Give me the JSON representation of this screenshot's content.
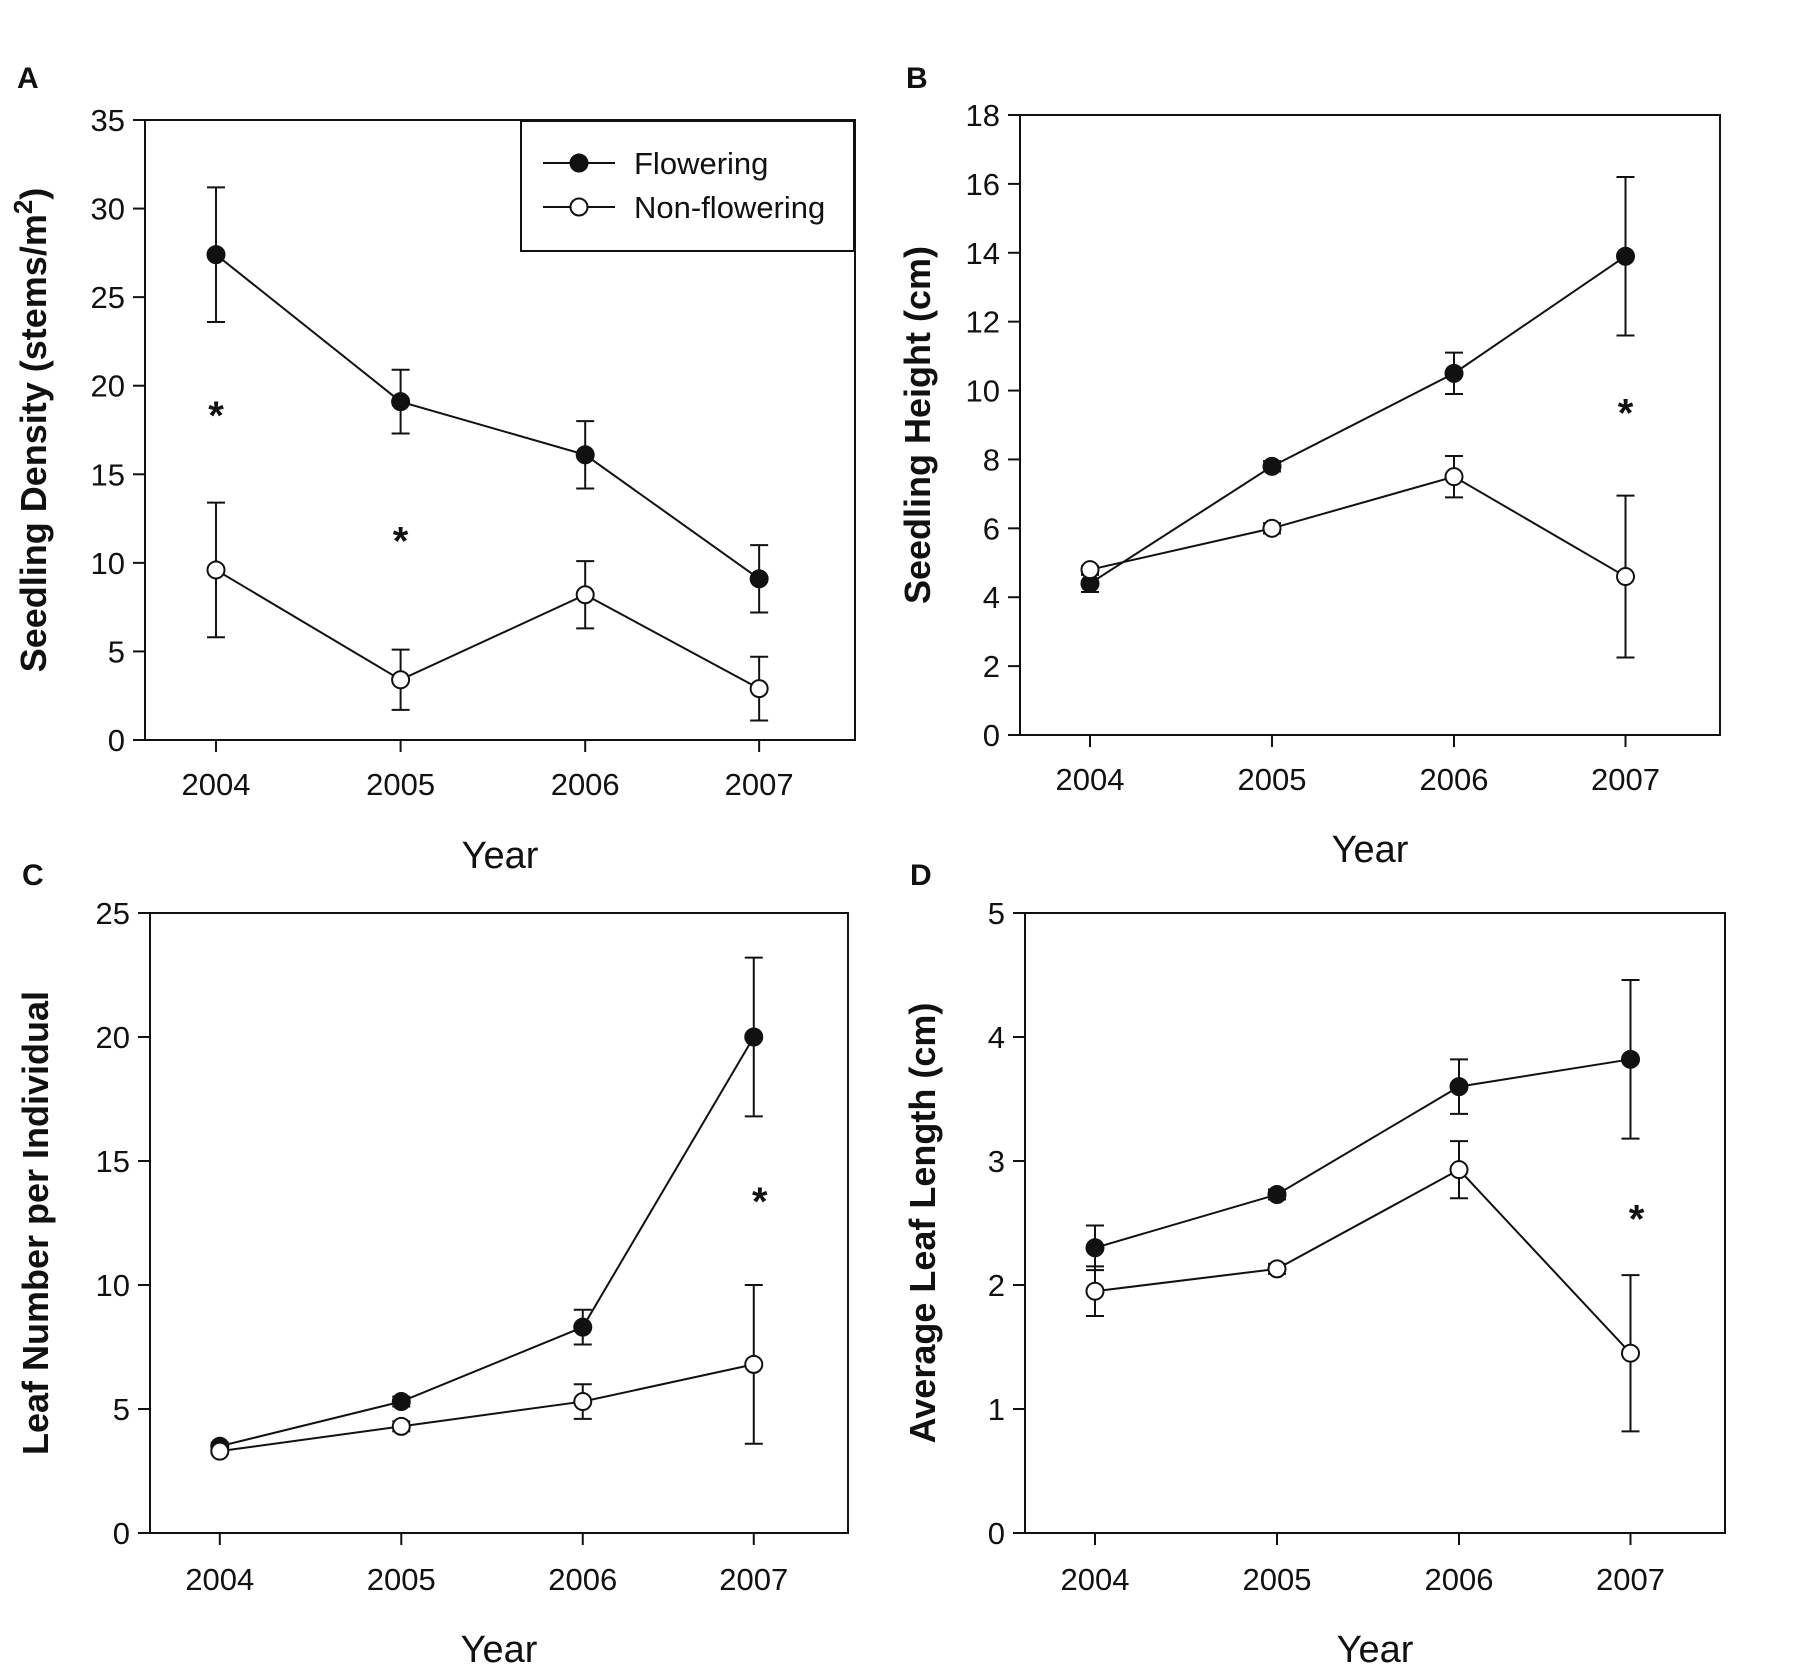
{
  "legend": {
    "flowering_label": "Flowering",
    "nonflowering_label": "Non-flowering"
  },
  "chart_data": [
    {
      "type": "line",
      "panel": "A",
      "title": "",
      "xlabel": "Year",
      "ylabel": "Seedling Density (stems/m2)",
      "ylabel_main": "Seedling Density (stems/m",
      "ylabel_sup": "2",
      "ylabel_end": ")",
      "categories": [
        "2004",
        "2005",
        "2006",
        "2007"
      ],
      "ylim": [
        0,
        35
      ],
      "yticks": [
        0,
        5,
        10,
        15,
        20,
        25,
        30,
        35
      ],
      "legend": "top-right",
      "series": [
        {
          "name": "Flowering",
          "values": [
            27.4,
            19.1,
            16.1,
            9.1
          ],
          "errors": [
            3.8,
            1.8,
            1.9,
            1.9
          ]
        },
        {
          "name": "Non-flowering",
          "values": [
            9.6,
            3.4,
            8.2,
            2.9
          ],
          "errors": [
            3.8,
            1.7,
            1.9,
            1.8
          ]
        }
      ],
      "annotations": [
        {
          "text": "*",
          "x": "2004",
          "y": 18.8
        },
        {
          "text": "*",
          "x": "2005",
          "y": 11.7
        }
      ]
    },
    {
      "type": "line",
      "panel": "B",
      "title": "",
      "xlabel": "Year",
      "ylabel": "Seedling Height (cm)",
      "categories": [
        "2004",
        "2005",
        "2006",
        "2007"
      ],
      "ylim": [
        0,
        18
      ],
      "yticks": [
        0,
        2,
        4,
        6,
        8,
        10,
        12,
        14,
        16,
        18
      ],
      "series": [
        {
          "name": "Flowering",
          "values": [
            4.4,
            7.8,
            10.5,
            13.9
          ],
          "errors": [
            0.25,
            0.15,
            0.6,
            2.3
          ]
        },
        {
          "name": "Non-flowering",
          "values": [
            4.8,
            6.0,
            7.5,
            4.6
          ],
          "errors": [
            0.1,
            0.15,
            0.6,
            2.35
          ]
        }
      ],
      "annotations": [
        {
          "text": "*",
          "x": "2007",
          "y": 9.6
        }
      ]
    },
    {
      "type": "line",
      "panel": "C",
      "title": "",
      "xlabel": "Year",
      "ylabel": "Leaf Number per Individual",
      "categories": [
        "2004",
        "2005",
        "2006",
        "2007"
      ],
      "ylim": [
        0,
        25
      ],
      "yticks": [
        0,
        5,
        10,
        15,
        20,
        25
      ],
      "series": [
        {
          "name": "Flowering",
          "values": [
            3.5,
            5.3,
            8.3,
            20.0
          ],
          "errors": [
            0.15,
            0.2,
            0.7,
            3.2
          ]
        },
        {
          "name": "Non-flowering",
          "values": [
            3.3,
            4.3,
            5.3,
            6.8
          ],
          "errors": [
            0.1,
            0.2,
            0.7,
            3.2
          ]
        }
      ],
      "annotations": [
        {
          "text": "*",
          "x": "2007",
          "y": 13.7
        }
      ]
    },
    {
      "type": "line",
      "panel": "D",
      "title": "",
      "xlabel": "Year",
      "ylabel": "Average Leaf Length (cm)",
      "categories": [
        "2004",
        "2005",
        "2006",
        "2007"
      ],
      "ylim": [
        0,
        5
      ],
      "yticks": [
        0,
        1,
        2,
        3,
        4,
        5
      ],
      "series": [
        {
          "name": "Flowering",
          "values": [
            2.3,
            2.73,
            3.6,
            3.82
          ],
          "errors": [
            0.18,
            0.04,
            0.22,
            0.64
          ]
        },
        {
          "name": "Non-flowering",
          "values": [
            1.95,
            2.13,
            2.93,
            1.45
          ],
          "errors": [
            0.2,
            0.04,
            0.23,
            0.63
          ]
        }
      ],
      "annotations": [
        {
          "text": "*",
          "x": "2007",
          "y": 2.6
        }
      ]
    }
  ]
}
